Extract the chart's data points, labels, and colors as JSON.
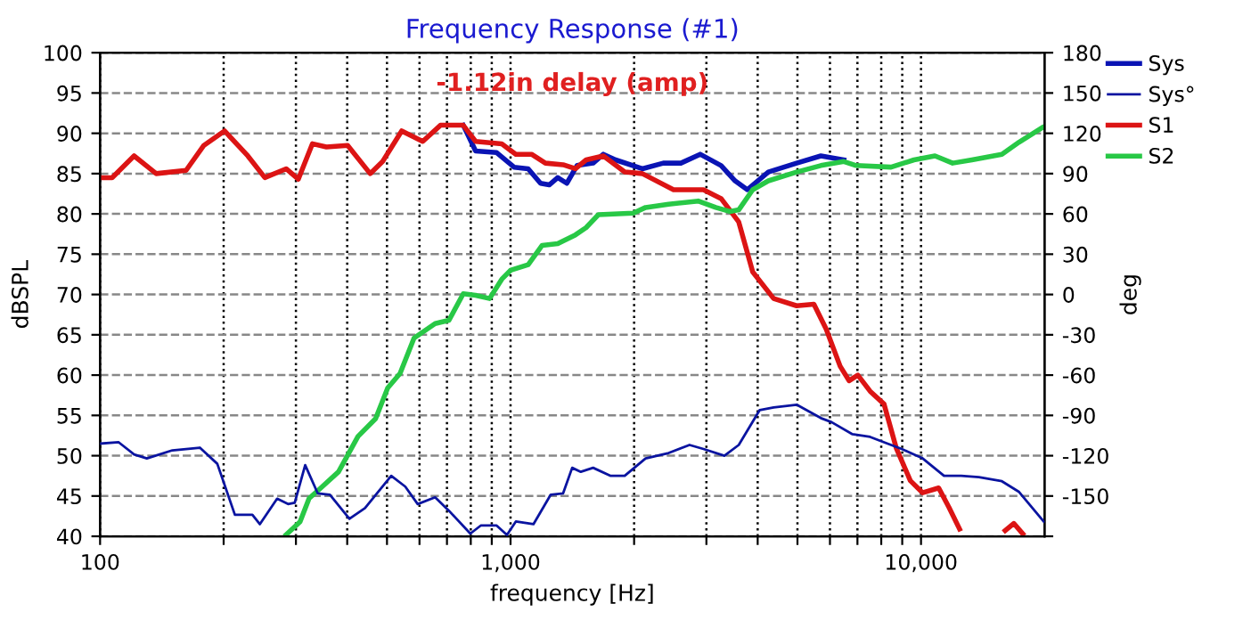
{
  "chart_data": {
    "type": "line",
    "title": "Frequency Response (#1)",
    "xlabel": "frequency [Hz]",
    "ylabel": "dBSPL",
    "y2label": "deg",
    "annotations": [
      "-1.12in delay (amp)"
    ],
    "log": "x",
    "grid": true,
    "legend": "top right",
    "line_style": "solid",
    "marker": "none",
    "xlim": [
      100,
      20000
    ],
    "xticks": [
      100,
      {
        "value": 200,
        "label": null
      },
      {
        "value": 300,
        "label": null
      },
      {
        "value": 400,
        "label": null
      },
      {
        "value": 500,
        "label": null
      },
      {
        "value": 600,
        "label": null
      },
      {
        "value": 700,
        "label": null
      },
      {
        "value": 800,
        "label": null
      },
      {
        "value": 900,
        "label": null
      },
      {
        "value": 1000,
        "label": "1,000"
      },
      {
        "value": 2000,
        "label": null
      },
      {
        "value": 3000,
        "label": null
      },
      {
        "value": 4000,
        "label": null
      },
      {
        "value": 5000,
        "label": null
      },
      {
        "value": 6000,
        "label": null
      },
      {
        "value": 7000,
        "label": null
      },
      {
        "value": 8000,
        "label": null
      },
      {
        "value": 9000,
        "label": null
      },
      {
        "value": 10000,
        "label": "10,000"
      }
    ],
    "ylim": [
      40,
      100
    ],
    "yticks": [
      40,
      45,
      50,
      55,
      60,
      65,
      70,
      75,
      80,
      85,
      90,
      95,
      100
    ],
    "y2lim": [
      -180,
      180
    ],
    "y2ticks": [
      {
        "value": -180,
        "label": null
      },
      -150,
      -120,
      -90,
      -60,
      -30,
      0,
      30,
      60,
      90,
      120,
      150,
      180
    ],
    "series": [
      {
        "name": "Sys",
        "color": "#0a14b4",
        "x": [
          767,
          822,
          925,
          1020,
          1104,
          1183,
          1242,
          1303,
          1371,
          1452,
          1589,
          1683,
          1803,
          2094,
          2355,
          2600,
          2897,
          3258,
          3524,
          3776,
          4246,
          4977,
          5702,
          6486
        ],
        "values": [
          91,
          87.8,
          87.6,
          85.8,
          85.6,
          83.8,
          83.6,
          84.5,
          83.8,
          86,
          86.3,
          87.4,
          86.7,
          85.6,
          86.3,
          86.3,
          87.4,
          86,
          84.1,
          83,
          85.2,
          86.3,
          87.2,
          86.7
        ]
      },
      {
        "name": "Sys°",
        "color": "#0a14a0",
        "axis": "y2",
        "x": [
          100,
          111,
          121,
          130,
          150,
          175,
          193,
          213,
          235,
          245,
          270,
          287,
          298,
          316,
          339,
          363,
          405,
          442,
          512,
          554,
          594,
          655,
          708,
          798,
          846,
          925,
          980,
          1030,
          1137,
          1253,
          1343,
          1413,
          1483,
          1589,
          1754,
          1897,
          2133,
          2427,
          2729,
          2951,
          3319,
          3597,
          4046,
          4375,
          4977,
          5702,
          6053,
          6808,
          7516,
          8128,
          8974,
          10093,
          11376,
          12531,
          13836,
          15740,
          17338,
          19910
        ],
        "values": [
          -111,
          -110,
          -119,
          -122,
          -116,
          -114,
          -126,
          -164,
          -164,
          -171,
          -152,
          -156,
          -155,
          -127,
          -148,
          -149,
          -167,
          -159,
          -135,
          -143,
          -156,
          -151,
          -161,
          -178,
          -172,
          -172,
          -179,
          -169,
          -171,
          -149,
          -148,
          -129,
          -132,
          -129,
          -135,
          -135,
          -122,
          -118,
          -112,
          -115,
          -120,
          -112,
          -86,
          -84,
          -82,
          -92,
          -95,
          -104,
          -106,
          -110,
          -115,
          -122,
          -135,
          -135,
          -136,
          -139,
          -147,
          -169
        ]
      },
      {
        "name": "S1",
        "color": "#dc1414",
        "x": [
          100,
          107,
          121,
          137,
          162,
          179,
          201,
          229,
          252,
          284,
          304,
          329,
          356,
          401,
          455,
          488,
          543,
          611,
          675,
          767,
          822,
          952,
          1030,
          1125,
          1216,
          1343,
          1439,
          1528,
          1683,
          1897,
          2094,
          2495,
          2951,
          3258,
          3597,
          3890,
          4375,
          4977,
          5483,
          5875,
          6353,
          6683,
          7015,
          7516,
          8128,
          8710,
          9419,
          10093,
          11042,
          11695,
          12414,
          14000,
          16032,
          16827,
          17700
        ],
        "values": [
          84.5,
          84.5,
          87.2,
          85,
          85.4,
          88.5,
          90.3,
          87.2,
          84.5,
          85.6,
          84.3,
          88.7,
          88.3,
          88.5,
          85,
          86.5,
          90.3,
          89,
          91,
          91,
          89,
          88.7,
          87.4,
          87.4,
          86.3,
          86.1,
          85.6,
          86.7,
          87.2,
          85.2,
          85,
          83,
          83,
          81.9,
          79,
          72.8,
          69.5,
          68.6,
          68.8,
          65.7,
          61.1,
          59.3,
          60,
          58,
          56.4,
          50.9,
          46.9,
          45.4,
          46,
          43.6,
          40.9,
          null,
          40.7,
          41.6,
          40.3
        ]
      },
      {
        "name": "S2",
        "color": "#28c846",
        "x": [
          284,
          307,
          323,
          345,
          381,
          425,
          469,
          502,
          538,
          582,
          655,
          708,
          767,
          822,
          889,
          952,
          1000,
          1104,
          1194,
          1303,
          1439,
          1528,
          1637,
          1991,
          2133,
          2427,
          2864,
          3162,
          3420,
          3597,
          3890,
          4246,
          4977,
          5702,
          6486,
          6950,
          8453,
          9611,
          10814,
          11940,
          13302,
          15740,
          17338,
          19724
        ],
        "values": [
          40.2,
          41.8,
          44.7,
          46,
          48,
          52.4,
          54.6,
          58.4,
          60.2,
          64.6,
          66.4,
          66.8,
          70.1,
          69.9,
          69.5,
          71.9,
          73,
          73.7,
          76.1,
          76.3,
          77.4,
          78.3,
          79.9,
          80.1,
          80.8,
          81.2,
          81.6,
          80.8,
          80.3,
          80.5,
          83,
          84.1,
          85.2,
          86,
          86.5,
          86,
          85.8,
          86.7,
          87.2,
          86.3,
          86.7,
          87.4,
          88.9,
          90.7
        ]
      }
    ]
  }
}
